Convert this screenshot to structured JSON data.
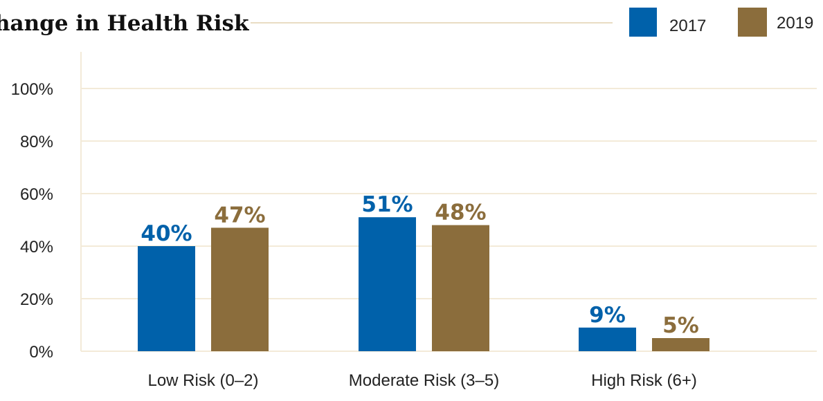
{
  "chart_data": {
    "type": "bar",
    "title": "hange in Health Risk",
    "categories": [
      "Low Risk (0–2)",
      "Moderate Risk (3–5)",
      "High Risk (6+)"
    ],
    "series": [
      {
        "name": "2017",
        "color": "#0061aa",
        "values": [
          40,
          51,
          9
        ],
        "labels": [
          "40%",
          "51%",
          "9%"
        ]
      },
      {
        "name": "2019",
        "color": "#8b6d3c",
        "values": [
          47,
          48,
          5
        ],
        "labels": [
          "47%",
          "48%",
          "5%"
        ]
      }
    ],
    "yticks": [
      "0%",
      "20%",
      "40%",
      "60%",
      "80%",
      "100%"
    ],
    "ylim": [
      0,
      110
    ],
    "grid": true,
    "legend": "top-right",
    "grid_color": "#f3ead8"
  }
}
